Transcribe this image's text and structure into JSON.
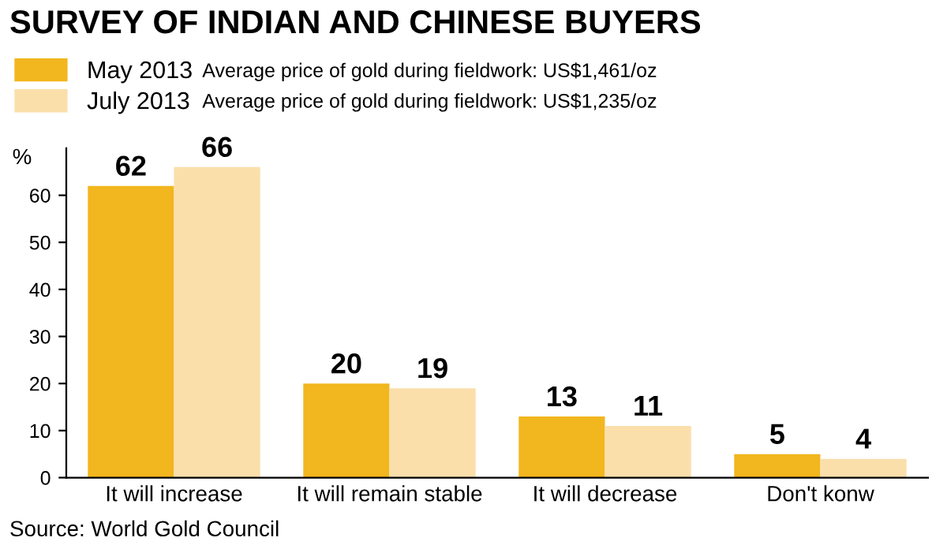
{
  "chart_data": {
    "type": "bar",
    "title": "SURVEY OF INDIAN AND CHINESE BUYERS",
    "ylabel": "%",
    "categories": [
      "It will increase",
      "It will remain stable",
      "It will decrease",
      "Don't konw"
    ],
    "series": [
      {
        "name": "May 2013",
        "color": "#f2b61e",
        "values": [
          62,
          20,
          13,
          5
        ]
      },
      {
        "name": "July 2013",
        "color": "#fbdfab",
        "values": [
          66,
          19,
          11,
          4
        ]
      }
    ],
    "ylim": [
      0,
      70
    ],
    "yticks": [
      0,
      10,
      20,
      30,
      40,
      50,
      60
    ],
    "data_labels": true,
    "legend": "top",
    "grid": false,
    "annotations": [
      "Average price of gold during fieldwork: US$1,461/oz",
      "Average price of gold during fieldwork: US$1,235/oz",
      "Source: World Gold Council"
    ]
  }
}
